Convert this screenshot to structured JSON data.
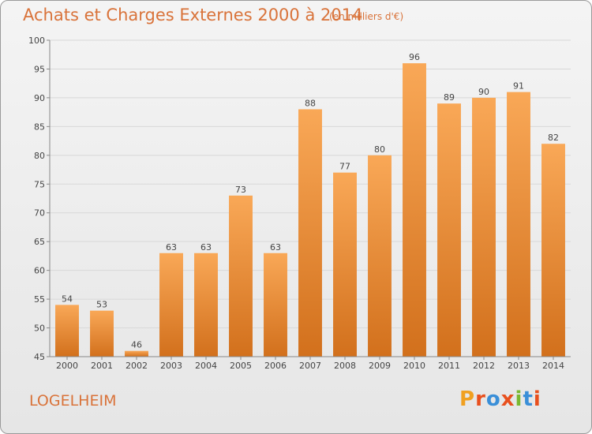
{
  "header": {
    "title": "Achats et Charges Externes 2000 à 2014",
    "subtitle": "(en milliers d'€)"
  },
  "footer": {
    "commune": "LOGELHEIM",
    "logo_text": "Proxiti",
    "logo_colors": [
      "#f0a020",
      "#e8501e",
      "#3a8fd8",
      "#e8501e",
      "#7ab830",
      "#3a8fd8",
      "#e8501e"
    ]
  },
  "colors": {
    "title": "#d9733a",
    "bar_top": "#f9a857",
    "bar_bottom": "#d2701c",
    "grid": "#d8d8d8",
    "axis": "#888888"
  },
  "chart_data": {
    "type": "bar",
    "title": "Achats et Charges Externes 2000 à 2014",
    "xlabel": "",
    "ylabel": "",
    "categories": [
      "2000",
      "2001",
      "2002",
      "2003",
      "2004",
      "2005",
      "2006",
      "2007",
      "2008",
      "2009",
      "2010",
      "2011",
      "2012",
      "2013",
      "2014"
    ],
    "values": [
      54,
      53,
      46,
      63,
      63,
      73,
      63,
      88,
      77,
      80,
      96,
      89,
      90,
      91,
      82
    ],
    "ylim": [
      45,
      100
    ],
    "yticks": [
      45,
      50,
      55,
      60,
      65,
      70,
      75,
      80,
      85,
      90,
      95,
      100
    ],
    "grid": true,
    "data_labels": true
  }
}
